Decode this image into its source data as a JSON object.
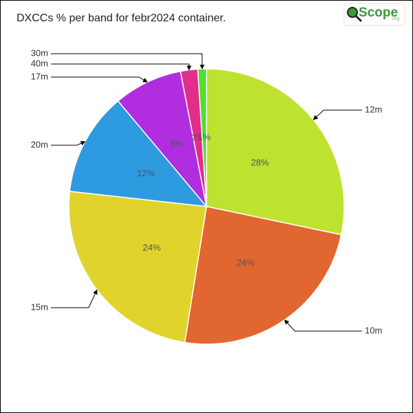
{
  "chart_data": {
    "type": "pie",
    "title": "DXCCs % per band for febr2024 container.",
    "logo": {
      "text": "Scope",
      "suffix": "org"
    },
    "categories": [
      "12m",
      "10m",
      "15m",
      "20m",
      "17m",
      "40m",
      "30m"
    ],
    "values": [
      28,
      24,
      24,
      12,
      8,
      2,
      1
    ],
    "value_labels": [
      "28%",
      "24%",
      "24%",
      "12%",
      "8%",
      "2%",
      "1%"
    ],
    "colors": [
      "#bde22f",
      "#e2662f",
      "#e0d42c",
      "#2e9ae0",
      "#b02ee0",
      "#e02e8a",
      "#4fe02e"
    ]
  }
}
